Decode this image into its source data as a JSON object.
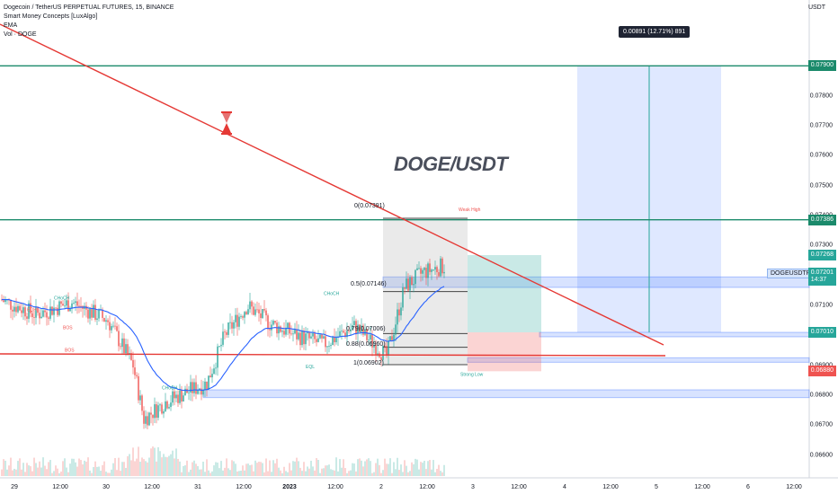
{
  "chart_data": {
    "type": "candlestick",
    "title": "Dogecoin / TetherUS PERPETUAL FUTURES, 15, BINANCE",
    "indicators": [
      "Smart Money Concepts [LuxAlgo]",
      "EMA",
      "Vol · DOGE"
    ],
    "watermark": "DOGE/USDT",
    "axis_unit": "USDT",
    "ylim": [
      0.0656,
      0.0806
    ],
    "y_ticks": [
      "0.07900",
      "0.07800",
      "0.07700",
      "0.07600",
      "0.07500",
      "0.07400",
      "0.07300",
      "0.07200",
      "0.07100",
      "0.07000",
      "0.06900",
      "0.06800",
      "0.06700",
      "0.06600"
    ],
    "x_ticks": [
      "29",
      "12:00",
      "30",
      "12:00",
      "31",
      "12:00",
      "2023",
      "12:00",
      "2",
      "12:00",
      "3",
      "12:00",
      "4",
      "12:00",
      "5",
      "12:00",
      "6",
      "12:00"
    ],
    "current_price": {
      "label": "DOGEUSDTPERP",
      "price": "0.07201",
      "countdown": "14:37",
      "color": "#26a69a"
    },
    "price_badges": [
      {
        "price": "0.07900",
        "color": "#1b8a6b"
      },
      {
        "price": "0.07386",
        "color": "#1b8a6b"
      },
      {
        "price": "0.07268",
        "color": "#26a69a"
      },
      {
        "price": "0.07010",
        "color": "#26a69a"
      },
      {
        "price": "0.06880",
        "color": "#ef5350"
      }
    ],
    "measure_tooltip": "0.00891 (12.71%) 891",
    "fib_levels": [
      {
        "label": "0(0.07391)",
        "value": 0.07391
      },
      {
        "label": "0.5(0.07146)",
        "value": 0.07146
      },
      {
        "label": "0.79(0.07006)",
        "value": 0.07006
      },
      {
        "label": "0.88(0.06960)",
        "value": 0.0696
      },
      {
        "label": "1(0.06902)",
        "value": 0.06902
      }
    ],
    "horizontal_lines": [
      {
        "value": 0.079,
        "color": "#1b8a6b"
      },
      {
        "value": 0.07386,
        "color": "#1b8a6b"
      }
    ],
    "trend_line": {
      "from": [
        0,
        0.0791
      ],
      "to": [
        1.0,
        0.0701
      ],
      "color": "#e53935"
    },
    "bos_line": {
      "value": 0.06965,
      "color": "#e53935"
    },
    "long_position": {
      "entry": 0.0701,
      "target": 0.07268,
      "stop": 0.0688
    },
    "projection": {
      "entry": 0.0701,
      "target": 0.079
    },
    "smc_labels": [
      "CHoCH",
      "BOS",
      "EQH",
      "EQL",
      "Weak High",
      "Strong Low"
    ],
    "colors": {
      "up": "#26a69a",
      "down": "#ef5350",
      "ema": "#2962ff",
      "trend": "#e53935",
      "zone": "#2962ff"
    }
  }
}
